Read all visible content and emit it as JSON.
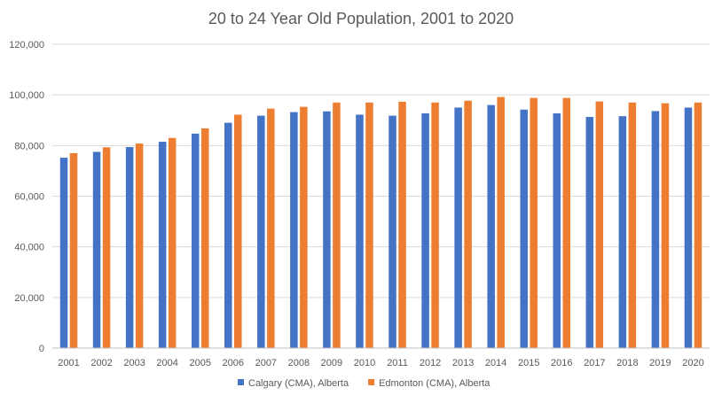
{
  "chart_data": {
    "type": "bar",
    "title": "20 to 24 Year Old Population, 2001 to 2020",
    "xlabel": "",
    "ylabel": "",
    "ylim": [
      0,
      120000
    ],
    "yticks": [
      "0",
      "20,000",
      "40,000",
      "60,000",
      "80,000",
      "100,000",
      "120,000"
    ],
    "ytick_values": [
      0,
      20000,
      40000,
      60000,
      80000,
      100000,
      120000
    ],
    "grid": true,
    "legend_position": "bottom",
    "categories": [
      "2001",
      "2002",
      "2003",
      "2004",
      "2005",
      "2006",
      "2007",
      "2008",
      "2009",
      "2010",
      "2011",
      "2012",
      "2013",
      "2014",
      "2015",
      "2016",
      "2017",
      "2018",
      "2019",
      "2020"
    ],
    "series": [
      {
        "name": "Calgary (CMA), Alberta",
        "color": "#4472c4",
        "values": [
          75200,
          77500,
          79400,
          81500,
          84700,
          89000,
          91800,
          93200,
          93500,
          92200,
          91800,
          92700,
          95000,
          96000,
          94200,
          92700,
          91300,
          91600,
          93600,
          95000
        ]
      },
      {
        "name": "Edmonton (CMA), Alberta",
        "color": "#ed7d31",
        "values": [
          77000,
          79300,
          80800,
          83000,
          86800,
          92200,
          94600,
          95300,
          97000,
          97000,
          97300,
          97000,
          97700,
          99200,
          98800,
          98800,
          97400,
          97000,
          96700,
          97000
        ]
      }
    ]
  }
}
